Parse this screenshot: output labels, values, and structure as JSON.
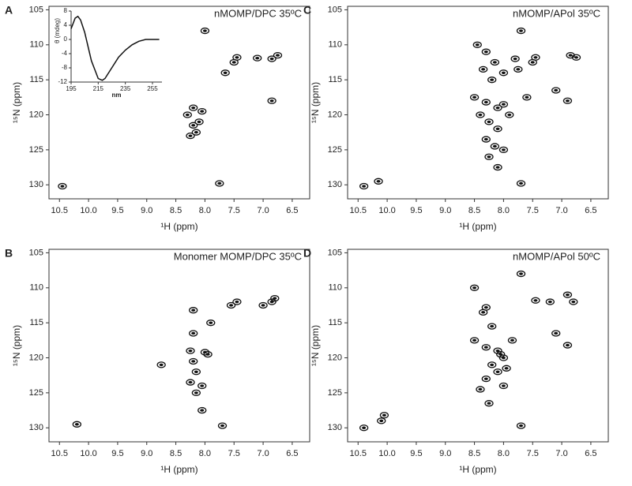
{
  "chart_data": [
    {
      "type": "scatter",
      "label": "A",
      "title": "nMOMP/DPC 35ºC",
      "xlabel": "¹H (ppm)",
      "ylabel": "¹⁵N (ppm)",
      "color": "#111111",
      "xlim": [
        10.68,
        6.2
      ],
      "ylim": [
        104.5,
        132
      ],
      "xticks": [
        10.5,
        {
          "value": 10,
          "label": "10.0"
        },
        9.5,
        {
          "value": 9,
          "label": "9.0"
        },
        8.5,
        {
          "value": 8,
          "label": "8.0"
        },
        7.5,
        {
          "value": 7,
          "label": "7.0"
        },
        6.5
      ],
      "yticks": [
        105,
        110,
        115,
        120,
        125,
        130
      ],
      "x": [
        10.45,
        7.75,
        7.45,
        7.5,
        6.85,
        6.75,
        6.85,
        8.0,
        7.1,
        8.3,
        8.2,
        8.1,
        8.25,
        8.05,
        8.15,
        8.2,
        7.65
      ],
      "values": [
        130.2,
        129.8,
        111.8,
        112.5,
        112,
        111.5,
        118,
        108,
        111.9,
        120,
        121.5,
        121,
        123,
        119.5,
        122.5,
        119,
        114
      ],
      "inset": {
        "type": "line",
        "xlabel": "nm",
        "ylabel": "θ (mdeg)",
        "color": "#111111",
        "xlim": [
          195,
          262
        ],
        "ylim": [
          -12,
          8
        ],
        "xticks": [
          195,
          215,
          235,
          255
        ],
        "yticks": [
          8,
          4,
          0,
          -4,
          -8,
          -12
        ],
        "x": [
          195,
          198,
          200,
          202,
          205,
          210,
          215,
          218,
          220,
          225,
          230,
          235,
          240,
          245,
          250,
          255,
          260
        ],
        "values": [
          3,
          6,
          6.5,
          5.5,
          2,
          -6,
          -11,
          -11.5,
          -11,
          -8,
          -5,
          -3,
          -1.5,
          -0.5,
          0,
          0,
          0
        ]
      }
    },
    {
      "type": "scatter",
      "label": "B",
      "title": "Monomer MOMP/DPC 35ºC",
      "xlabel": "¹H (ppm)",
      "ylabel": "¹⁵N (ppm)",
      "color": "#111111",
      "xlim": [
        10.68,
        6.2
      ],
      "ylim": [
        104.5,
        132
      ],
      "xticks": [
        10.5,
        {
          "value": 10,
          "label": "10.0"
        },
        9.5,
        {
          "value": 9,
          "label": "9.0"
        },
        8.5,
        {
          "value": 8,
          "label": "8.0"
        },
        7.5,
        {
          "value": 7,
          "label": "7.0"
        },
        6.5
      ],
      "yticks": [
        105,
        110,
        115,
        120,
        125,
        130
      ],
      "x": [
        10.2,
        8.75,
        8.2,
        8.2,
        8.25,
        8.0,
        7.95,
        8.2,
        8.15,
        8.25,
        8.05,
        8.15,
        8.05,
        7.45,
        7.55,
        6.85,
        6.8,
        7.0,
        7.7,
        7.9
      ],
      "values": [
        129.5,
        121,
        113.2,
        116.5,
        119,
        119.2,
        119.5,
        120.5,
        122,
        123.5,
        124,
        125,
        127.5,
        112,
        112.5,
        112,
        111.5,
        112.5,
        129.7,
        115
      ]
    },
    {
      "type": "scatter",
      "label": "C",
      "title": "nMOMP/APol 35ºC",
      "xlabel": "¹H (ppm)",
      "ylabel": "¹⁵N (ppm)",
      "color": "#111111",
      "xlim": [
        10.68,
        6.2
      ],
      "ylim": [
        104.5,
        132
      ],
      "xticks": [
        10.5,
        {
          "value": 10,
          "label": "10.0"
        },
        9.5,
        {
          "value": 9,
          "label": "9.0"
        },
        8.5,
        {
          "value": 8,
          "label": "8.0"
        },
        7.5,
        {
          "value": 7,
          "label": "7.0"
        },
        6.5
      ],
      "yticks": [
        105,
        110,
        115,
        120,
        125,
        130
      ],
      "x": [
        10.4,
        10.15,
        8.45,
        8.3,
        8.15,
        8.35,
        8.2,
        8.0,
        8.5,
        8.3,
        8.1,
        8.0,
        8.4,
        8.25,
        8.1,
        8.3,
        8.15,
        8.0,
        8.25,
        8.1,
        7.9,
        7.8,
        7.45,
        7.5,
        6.85,
        6.75,
        6.9,
        7.1,
        7.7,
        7.7,
        7.75,
        7.6
      ],
      "values": [
        130.2,
        129.5,
        110,
        111,
        112.5,
        113.5,
        115,
        114,
        117.5,
        118.2,
        119,
        118.5,
        120,
        121,
        122,
        123.5,
        124.5,
        125,
        126,
        127.5,
        120,
        112,
        111.8,
        112.5,
        111.5,
        111.8,
        118,
        116.5,
        108,
        129.8,
        113.5,
        117.5
      ]
    },
    {
      "type": "scatter",
      "label": "D",
      "title": "nMOMP/APol 50ºC",
      "xlabel": "¹H (ppm)",
      "ylabel": "¹⁵N (ppm)",
      "color": "#111111",
      "xlim": [
        10.68,
        6.2
      ],
      "ylim": [
        104.5,
        132
      ],
      "xticks": [
        10.5,
        {
          "value": 10,
          "label": "10.0"
        },
        9.5,
        {
          "value": 9,
          "label": "9.0"
        },
        8.5,
        {
          "value": 8,
          "label": "8.0"
        },
        7.5,
        {
          "value": 7,
          "label": "7.0"
        },
        6.5
      ],
      "yticks": [
        105,
        110,
        115,
        120,
        125,
        130
      ],
      "x": [
        10.4,
        10.1,
        10.05,
        8.5,
        8.3,
        8.2,
        8.35,
        8.5,
        8.3,
        8.1,
        8.0,
        8.2,
        8.1,
        8.3,
        8.0,
        8.25,
        7.85,
        7.7,
        7.45,
        7.2,
        6.9,
        6.8,
        7.1,
        6.9,
        7.7,
        8.4,
        8.05,
        7.95
      ],
      "values": [
        130,
        129,
        128.2,
        110,
        112.8,
        115.5,
        113.5,
        117.5,
        118.5,
        119,
        120,
        121,
        122,
        123,
        124,
        126.5,
        117.5,
        108,
        111.8,
        112,
        111,
        112,
        116.5,
        118.2,
        129.7,
        124.5,
        119.5,
        121.5
      ]
    }
  ]
}
